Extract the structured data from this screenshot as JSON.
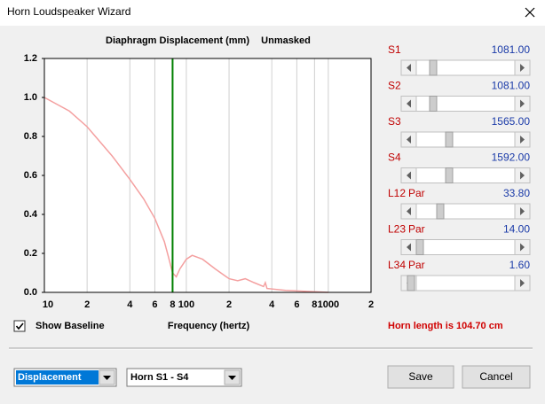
{
  "window": {
    "title": "Horn Loudspeaker Wizard"
  },
  "chart_data": {
    "type": "line",
    "title": "Diaphragm Displacement (mm)",
    "subtitle": "Unmasked",
    "x_label": "Frequency (hertz)",
    "xscale": "log",
    "xlim": [
      10,
      2000
    ],
    "ylim": [
      0,
      1.2
    ],
    "xticks": [
      10,
      {
        "value": 20,
        "label": "2"
      },
      {
        "value": 40,
        "label": "4"
      },
      {
        "value": 60,
        "label": "6"
      },
      {
        "value": 80,
        "label": "8"
      },
      100,
      {
        "value": 200,
        "label": "2"
      },
      {
        "value": 400,
        "label": "4"
      },
      {
        "value": 600,
        "label": "6"
      },
      {
        "value": 800,
        "label": "8"
      },
      1000,
      {
        "value": 2000,
        "label": "2"
      }
    ],
    "yticks": [
      {
        "value": 0,
        "label": "0.0"
      },
      0.2,
      0.4,
      0.6,
      0.8,
      {
        "value": 1,
        "label": "1.0"
      },
      1.2
    ],
    "x": [
      10,
      15,
      20,
      30,
      40,
      50,
      60,
      70,
      75,
      80,
      85,
      90,
      100,
      110,
      130,
      160,
      200,
      230,
      260,
      300,
      350,
      360,
      370,
      500,
      700,
      1000
    ],
    "values": [
      1.0,
      0.93,
      0.85,
      0.7,
      0.58,
      0.48,
      0.38,
      0.26,
      0.18,
      0.1,
      0.08,
      0.12,
      0.17,
      0.19,
      0.17,
      0.12,
      0.07,
      0.06,
      0.07,
      0.05,
      0.03,
      0.05,
      0.02,
      0.01,
      0.005,
      0
    ],
    "color": "#f4a0a0",
    "marker_x": 80,
    "marker_color": "#008000",
    "grid": true
  },
  "sliders": [
    {
      "label": "S1",
      "value": "1081.00"
    },
    {
      "label": "S2",
      "value": "1081.00"
    },
    {
      "label": "S3",
      "value": "1565.00"
    },
    {
      "label": "S4",
      "value": "1592.00"
    },
    {
      "label": "L12",
      "par": "Par",
      "value": "33.80"
    },
    {
      "label": "L23",
      "par": "Par",
      "value": "14.00"
    },
    {
      "label": "L34",
      "par": "Par",
      "value": "1.60"
    }
  ],
  "show_baseline": {
    "label": "Show Baseline",
    "checked": true
  },
  "horn_length": "Horn length is 104.70 cm",
  "controls": {
    "mode": "Displacement",
    "horn": "Horn S1 - S4"
  },
  "buttons": {
    "save": "Save",
    "cancel": "Cancel"
  }
}
